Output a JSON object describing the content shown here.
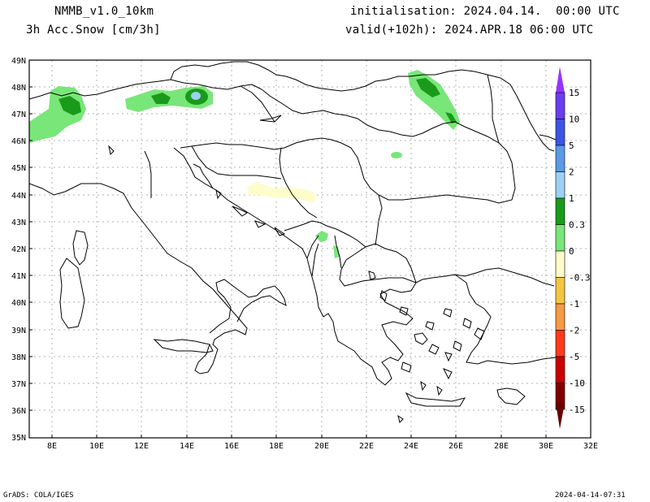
{
  "header": {
    "model": "NMMB_v1.0_10km",
    "field": "3h Acc.Snow [cm/3h]",
    "init": "initialisation: 2024.04.14.  00:00 UTC",
    "valid": "valid(+102h): 2024.APR.18 06:00 UTC"
  },
  "axes": {
    "lat_labels": [
      "49N",
      "48N",
      "47N",
      "46N",
      "45N",
      "44N",
      "43N",
      "42N",
      "41N",
      "40N",
      "39N",
      "38N",
      "37N",
      "36N",
      "35N"
    ],
    "lon_labels": [
      "8E",
      "10E",
      "12E",
      "14E",
      "16E",
      "18E",
      "20E",
      "22E",
      "24E",
      "26E",
      "28E",
      "30E",
      "32E"
    ]
  },
  "colorbar": {
    "labels": [
      "15",
      "10",
      "5",
      "2",
      "1",
      "0.3",
      "0",
      "-0.3",
      "-1",
      "-2",
      "-5",
      "-10",
      "-15"
    ],
    "colors": [
      "#6a3df0",
      "#3b55e6",
      "#5a9be6",
      "#9cd0f5",
      "#1a9a1a",
      "#78e678",
      "#ffffff",
      "#fffccc",
      "#f5c542",
      "#f59b42",
      "#ff3a1a",
      "#cc0000",
      "#800000"
    ],
    "top_arrow_color": "#9933ff",
    "bottom_arrow_color": "#660000"
  },
  "footer": {
    "left": "GrADS: COLA/IGES",
    "right": "2024-04-14-07:31"
  }
}
